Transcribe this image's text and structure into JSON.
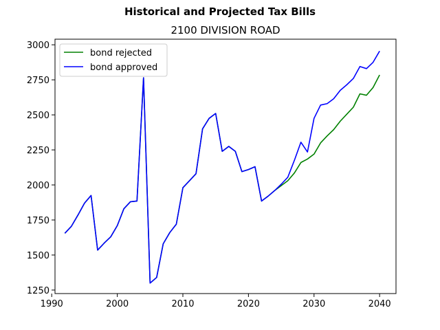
{
  "suptitle": "Historical and Projected Tax Bills",
  "title": "2100 DIVISION ROAD",
  "chart_data": {
    "type": "line",
    "title": "2100 DIVISION ROAD",
    "suptitle": "Historical and Projected Tax Bills",
    "xlabel": "",
    "ylabel": "",
    "xlim": [
      1990.5,
      2042.5
    ],
    "ylim": [
      1225,
      3040
    ],
    "xticks": [
      1990,
      2000,
      2010,
      2020,
      2030,
      2040
    ],
    "yticks": [
      1250,
      1500,
      1750,
      2000,
      2250,
      2500,
      2750,
      3000
    ],
    "grid": false,
    "legend_position": "upper left",
    "series": [
      {
        "name": "bond rejected",
        "color": "#008000",
        "x": [
          1992,
          1993,
          1994,
          1995,
          1996,
          1997,
          1998,
          1999,
          2000,
          2001,
          2002,
          2003,
          2004,
          2005,
          2006,
          2007,
          2008,
          2009,
          2010,
          2011,
          2012,
          2013,
          2014,
          2015,
          2016,
          2017,
          2018,
          2019,
          2020,
          2021,
          2022,
          2023,
          2024,
          2025,
          2026,
          2027,
          2028,
          2029,
          2030,
          2031,
          2032,
          2033,
          2034,
          2035,
          2036,
          2037,
          2038,
          2039,
          2040
        ],
        "values": [
          1655,
          1705,
          1785,
          1870,
          1925,
          1535,
          1585,
          1630,
          1710,
          1830,
          1880,
          1885,
          2765,
          1300,
          1340,
          1580,
          1660,
          1720,
          1980,
          2030,
          2080,
          2400,
          2475,
          2510,
          2240,
          2275,
          2240,
          2095,
          2110,
          2130,
          1885,
          1920,
          1960,
          1995,
          2030,
          2085,
          2160,
          2185,
          2220,
          2300,
          2350,
          2395,
          2455,
          2505,
          2555,
          2650,
          2640,
          2695,
          2785
        ]
      },
      {
        "name": "bond approved",
        "color": "#0000ff",
        "x": [
          1992,
          1993,
          1994,
          1995,
          1996,
          1997,
          1998,
          1999,
          2000,
          2001,
          2002,
          2003,
          2004,
          2005,
          2006,
          2007,
          2008,
          2009,
          2010,
          2011,
          2012,
          2013,
          2014,
          2015,
          2016,
          2017,
          2018,
          2019,
          2020,
          2021,
          2022,
          2023,
          2024,
          2025,
          2026,
          2027,
          2028,
          2029,
          2030,
          2031,
          2032,
          2033,
          2034,
          2035,
          2036,
          2037,
          2038,
          2039,
          2040
        ],
        "values": [
          1655,
          1705,
          1785,
          1870,
          1925,
          1535,
          1585,
          1630,
          1710,
          1830,
          1880,
          1885,
          2765,
          1300,
          1340,
          1580,
          1660,
          1720,
          1980,
          2030,
          2080,
          2400,
          2475,
          2510,
          2240,
          2275,
          2240,
          2095,
          2110,
          2130,
          1885,
          1920,
          1960,
          2005,
          2055,
          2175,
          2305,
          2235,
          2475,
          2570,
          2580,
          2615,
          2675,
          2715,
          2760,
          2845,
          2830,
          2875,
          2955
        ]
      }
    ]
  }
}
